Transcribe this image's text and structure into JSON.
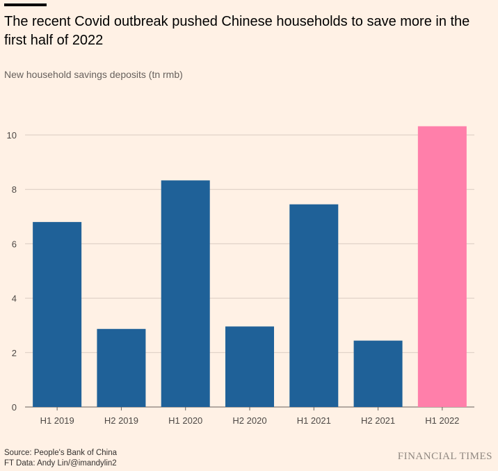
{
  "header": {
    "title": "The recent Covid outbreak pushed Chinese households to save more in the first half of 2022",
    "subtitle": "New household savings deposits (tn rmb)"
  },
  "footer": {
    "source": "Source: People's Bank of China",
    "credit": "FT Data: Andy Lin/@imandylin2",
    "logo_text": "FINANCIAL TIMES"
  },
  "colors": {
    "background": "#fff1e5",
    "bar_default": "#1f6198",
    "bar_highlight": "#ff7faa",
    "gridline": "#d9ccc1",
    "axis": "#66605c",
    "tick_text": "#4d4845"
  },
  "chart_data": {
    "type": "bar",
    "title": "The recent Covid outbreak pushed Chinese households to save more in the first half of 2022",
    "ylabel": "New household savings deposits (tn rmb)",
    "xlabel": "",
    "categories": [
      "H1 2019",
      "H2 2019",
      "H1 2020",
      "H2 2020",
      "H1 2021",
      "H2 2021",
      "H1 2022"
    ],
    "values": [
      6.8,
      2.87,
      8.33,
      2.96,
      7.45,
      2.44,
      10.32
    ],
    "highlight": [
      "H1 2022"
    ],
    "ylim": [
      0,
      11
    ],
    "yticks": [
      0,
      2,
      4,
      6,
      8,
      10
    ],
    "grid": true,
    "legend": "none"
  }
}
